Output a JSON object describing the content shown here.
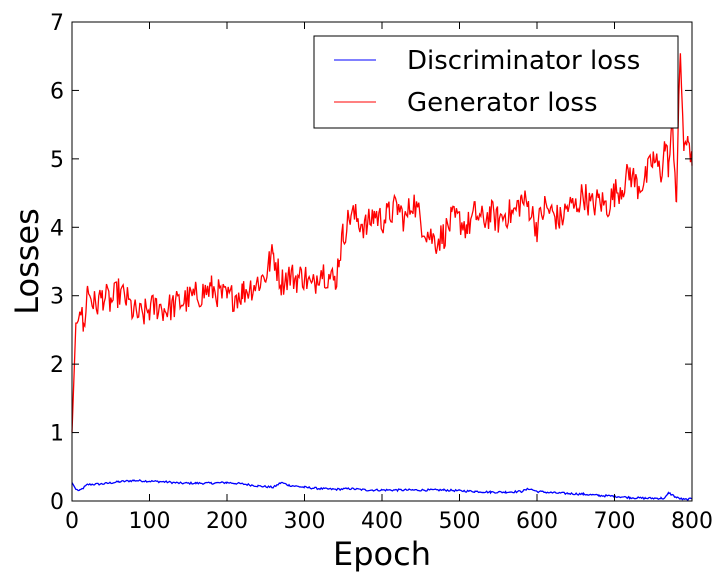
{
  "chart_data": {
    "type": "line",
    "xlabel": "Epoch",
    "ylabel": "Losses",
    "xlim": [
      0,
      800
    ],
    "ylim": [
      0,
      7
    ],
    "xticks": [
      0,
      100,
      200,
      300,
      400,
      500,
      600,
      700,
      800
    ],
    "yticks": [
      0,
      1,
      2,
      3,
      4,
      5,
      6,
      7
    ],
    "grid": false,
    "legend_position": "top-right",
    "series": [
      {
        "name": "Discriminator loss",
        "color": "#0000ff",
        "x": [
          0,
          5,
          10,
          20,
          40,
          60,
          80,
          100,
          120,
          140,
          160,
          180,
          200,
          220,
          240,
          260,
          270,
          280,
          300,
          320,
          340,
          360,
          380,
          400,
          420,
          440,
          460,
          480,
          500,
          520,
          540,
          560,
          580,
          590,
          600,
          620,
          640,
          660,
          680,
          700,
          720,
          740,
          760,
          765,
          770,
          780,
          790,
          800
        ],
        "values": [
          0.27,
          0.17,
          0.15,
          0.24,
          0.25,
          0.28,
          0.3,
          0.29,
          0.28,
          0.26,
          0.26,
          0.26,
          0.27,
          0.25,
          0.22,
          0.2,
          0.27,
          0.23,
          0.2,
          0.18,
          0.17,
          0.18,
          0.16,
          0.16,
          0.16,
          0.16,
          0.16,
          0.16,
          0.15,
          0.14,
          0.13,
          0.13,
          0.14,
          0.18,
          0.14,
          0.12,
          0.11,
          0.1,
          0.08,
          0.07,
          0.05,
          0.04,
          0.04,
          0.04,
          0.12,
          0.05,
          0.02,
          0.03
        ]
      },
      {
        "name": "Generator loss",
        "color": "#ff0000",
        "x": [
          0,
          5,
          10,
          15,
          20,
          30,
          40,
          50,
          60,
          70,
          80,
          90,
          100,
          110,
          120,
          140,
          160,
          180,
          200,
          220,
          240,
          250,
          255,
          260,
          270,
          280,
          290,
          300,
          310,
          320,
          330,
          340,
          345,
          350,
          360,
          370,
          380,
          390,
          400,
          410,
          420,
          430,
          440,
          450,
          460,
          470,
          480,
          490,
          500,
          510,
          520,
          530,
          540,
          550,
          560,
          570,
          580,
          590,
          600,
          610,
          620,
          630,
          640,
          650,
          660,
          670,
          680,
          690,
          700,
          710,
          720,
          730,
          740,
          750,
          760,
          765,
          770,
          775,
          780,
          785,
          790,
          795,
          800
        ],
        "values": [
          1.0,
          2.6,
          2.9,
          2.5,
          3.1,
          2.85,
          3.0,
          2.9,
          3.05,
          2.95,
          2.75,
          2.7,
          2.8,
          2.85,
          2.8,
          2.9,
          3.0,
          3.1,
          2.95,
          3.05,
          3.2,
          3.3,
          3.5,
          3.6,
          3.2,
          3.3,
          3.25,
          3.3,
          3.1,
          3.4,
          3.3,
          3.2,
          3.6,
          3.9,
          4.2,
          4.1,
          4.0,
          4.2,
          4.1,
          4.2,
          4.3,
          4.1,
          4.4,
          4.1,
          3.9,
          3.8,
          3.9,
          4.1,
          4.1,
          4.0,
          4.2,
          4.1,
          4.2,
          4.1,
          4.2,
          4.2,
          4.4,
          4.3,
          4.0,
          4.3,
          4.2,
          4.1,
          4.3,
          4.3,
          4.5,
          4.3,
          4.4,
          4.3,
          4.5,
          4.6,
          4.8,
          4.6,
          4.7,
          5.0,
          4.8,
          5.2,
          4.9,
          5.5,
          4.4,
          6.6,
          5.0,
          5.4,
          4.9
        ]
      }
    ]
  }
}
